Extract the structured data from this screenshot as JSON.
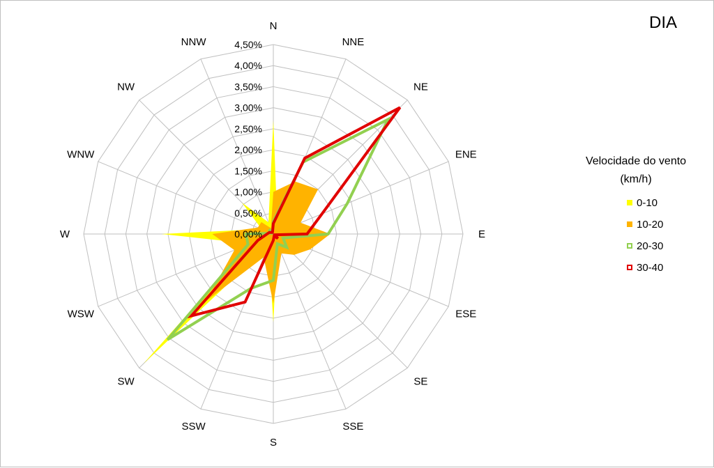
{
  "title": "DIA",
  "legend": {
    "title_line1": "Velocidade do vento",
    "title_line2": "(km/h)"
  },
  "colors": {
    "grid": "#bfbfbf",
    "s0_10": "#ffff00",
    "s10_20": "#ffb300",
    "s20_30": "#92d050",
    "s30_40": "#e10000"
  },
  "chart_data": {
    "type": "radar",
    "categories": [
      "N",
      "NNE",
      "NE",
      "ENE",
      "E",
      "ESE",
      "SE",
      "SSE",
      "S",
      "SSW",
      "SW",
      "WSW",
      "W",
      "WNW",
      "NW",
      "NNW"
    ],
    "tick_labels": [
      "0,00%",
      "0,50%",
      "1,00%",
      "1,50%",
      "2,00%",
      "2,50%",
      "3,00%",
      "3,50%",
      "4,00%",
      "4,50%"
    ],
    "rmax": 4.5,
    "series": [
      {
        "name": "0-10",
        "style": "fill",
        "values": [
          2.7,
          0.25,
          0.35,
          0.2,
          0.2,
          0.25,
          0.2,
          0.25,
          2.1,
          0.3,
          4.35,
          0.6,
          2.65,
          0.3,
          1.05,
          0.3
        ]
      },
      {
        "name": "10-20",
        "style": "fill",
        "values": [
          1.0,
          1.35,
          1.5,
          0.7,
          1.35,
          0.95,
          0.7,
          0.5,
          1.65,
          0.6,
          2.25,
          1.0,
          1.45,
          0.4,
          0.4,
          0.15
        ]
      },
      {
        "name": "20-30",
        "style": "line",
        "values": [
          0.3,
          1.85,
          3.85,
          1.9,
          1.3,
          0.25,
          0.45,
          0.25,
          1.1,
          1.4,
          3.55,
          0.65,
          0.65,
          0.05,
          0.15,
          0.05
        ]
      },
      {
        "name": "30-40",
        "style": "line",
        "values": [
          0.25,
          1.95,
          4.25,
          1.25,
          0.8,
          0.05,
          0.15,
          0.05,
          0.15,
          1.75,
          2.75,
          0.4,
          0.15,
          0.1,
          0.05,
          0.05
        ]
      }
    ]
  }
}
